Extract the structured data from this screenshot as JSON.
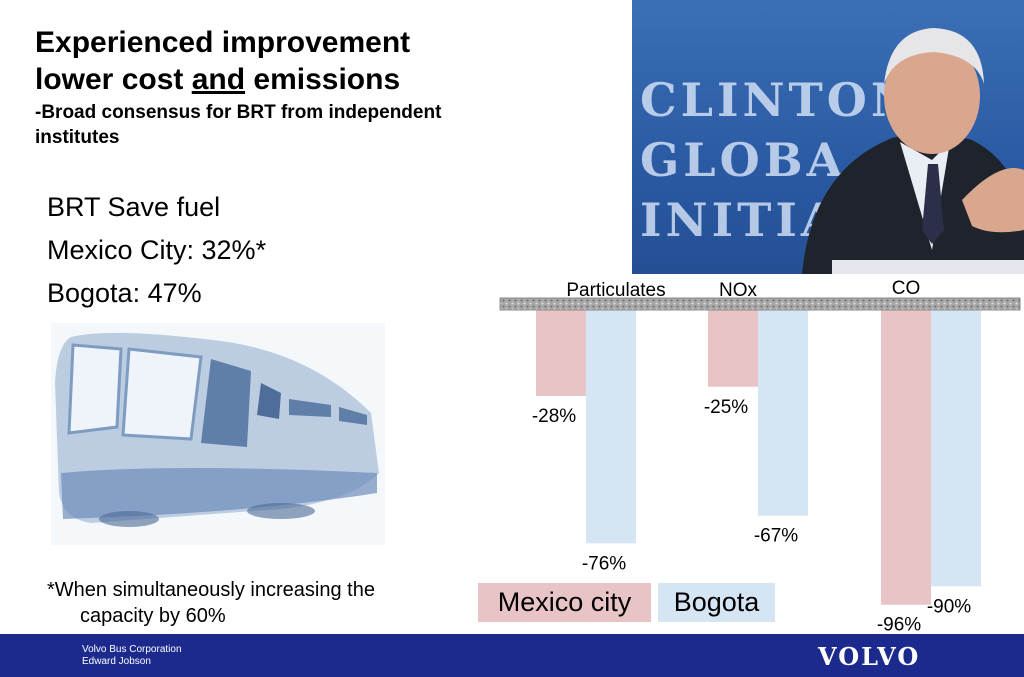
{
  "slide": {
    "title_line1": "Experienced improvement",
    "title_line2_pre": "lower cost ",
    "title_line2_und": "and",
    "title_line2_post": " emissions",
    "subtitle": "-Broad consensus for BRT from independent institutes",
    "bullets": [
      "BRT Save fuel",
      "Mexico City: 32%*",
      "Bogota: 47%"
    ],
    "footnote_line1": "*When simultaneously increasing the",
    "footnote_line2": "capacity by 60%",
    "photo_backdrop_text": "CLINTON\nGLOBA\nINITIAT"
  },
  "footer": {
    "company": "Volvo Bus Corporation",
    "author": "Edward Jobson",
    "logo_text": "VOLVO",
    "background_color": "#1b2a8c"
  },
  "legend": {
    "mexico_label": "Mexico city",
    "bogota_label": "Bogota"
  },
  "chart_data": {
    "type": "bar",
    "categories": [
      "Particulates",
      "NOx",
      "CO"
    ],
    "series": [
      {
        "name": "Mexico city",
        "values": [
          -28,
          -25,
          -96
        ],
        "labels": [
          "-28%",
          "-25%",
          "-96%"
        ],
        "color": "#e8c4c6"
      },
      {
        "name": "Bogota",
        "values": [
          -76,
          -67,
          -90
        ],
        "labels": [
          "-76%",
          "-67%",
          "-90%"
        ],
        "color": "#d6e5f4"
      }
    ],
    "ylim": [
      -100,
      0
    ],
    "legend": "bottom-left",
    "grid": false
  }
}
